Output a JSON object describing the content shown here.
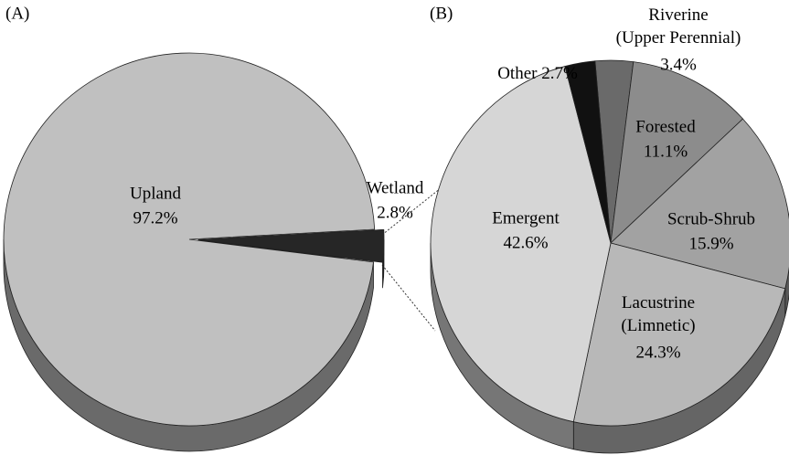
{
  "chart_data": [
    {
      "type": "pie",
      "title": "(A)",
      "categories": [
        "Upland",
        "Wetland"
      ],
      "values": [
        97.2,
        2.8
      ],
      "value_labels": [
        "97.2%",
        "2.8%"
      ],
      "colors": [
        "#c0c0c0",
        "#262626"
      ],
      "explode": [
        false,
        true
      ]
    },
    {
      "type": "pie",
      "title": "(B)",
      "categories": [
        "Riverine (Upper Perennial)",
        "Forested",
        "Scrub-Shrub",
        "Lacustrine (Limnetic)",
        "Emergent",
        "Other"
      ],
      "values": [
        3.4,
        11.1,
        15.9,
        24.3,
        42.6,
        2.7
      ],
      "value_labels": [
        "3.4%",
        "11.1%",
        "15.9%",
        "24.3%",
        "42.6%",
        "2.7%"
      ],
      "colors": [
        "#6a6a6a",
        "#8c8c8c",
        "#a2a2a2",
        "#b8b8b8",
        "#d6d6d6",
        "#111111"
      ],
      "explode": [
        false,
        false,
        false,
        false,
        false,
        false
      ]
    }
  ]
}
